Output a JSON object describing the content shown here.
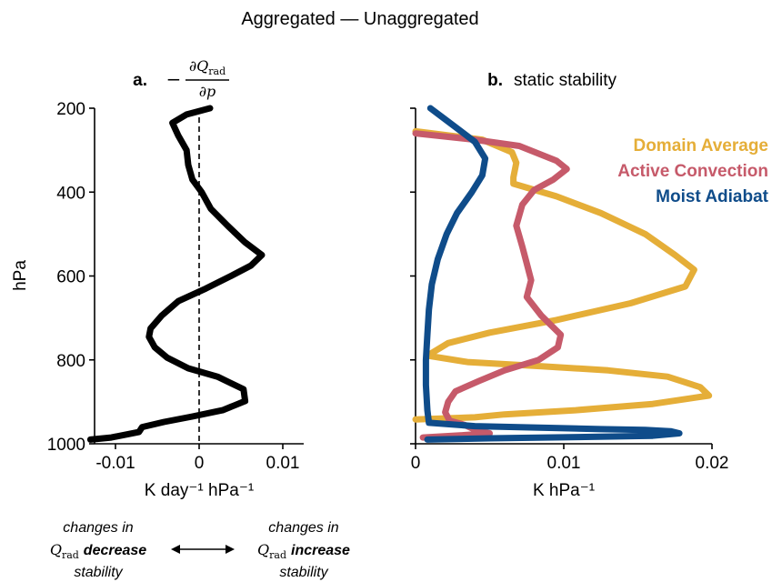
{
  "figure": {
    "suptitle": "Aggregated — Unaggregated",
    "bottom_annotation": {
      "left_line1": "changes in",
      "left_sym": "Q",
      "left_sub": "rad",
      "left_bold": "decrease",
      "left_line3": "stability",
      "right_line1": "changes in",
      "right_sym": "Q",
      "right_sub": "rad",
      "right_bold": "increase",
      "right_line3": "stability"
    }
  },
  "chart_data": [
    {
      "type": "line",
      "panel_label": "a.",
      "title_minus": "−",
      "title_num": "∂Q",
      "title_num_sub": "rad",
      "title_den": "∂p",
      "ylabel": "hPa",
      "xlabel": "K day⁻¹ hPa⁻¹",
      "xlim": [
        -0.0125,
        0.0125
      ],
      "ylim": [
        1000,
        200
      ],
      "y_inverted": true,
      "xticks": [
        -0.01,
        0,
        0.01
      ],
      "xtick_labels": [
        "-0.01",
        "0",
        "0.01"
      ],
      "yticks": [
        200,
        400,
        600,
        800,
        1000
      ],
      "ytick_labels": [
        "200",
        "400",
        "600",
        "800",
        "1000"
      ],
      "zero_line": "dashed",
      "series": [
        {
          "color": "#000000",
          "points": [
            [
              0.0013,
              200
            ],
            [
              -0.0015,
              215
            ],
            [
              -0.0032,
              235
            ],
            [
              -0.0025,
              265
            ],
            [
              -0.0015,
              300
            ],
            [
              -0.0013,
              335
            ],
            [
              -0.0008,
              370
            ],
            [
              0.0003,
              400
            ],
            [
              0.0014,
              440
            ],
            [
              0.0034,
              480
            ],
            [
              0.0055,
              520
            ],
            [
              0.0075,
              550
            ],
            [
              0.0062,
              575
            ],
            [
              0.0038,
              600
            ],
            [
              0.0008,
              630
            ],
            [
              -0.0025,
              660
            ],
            [
              -0.0045,
              695
            ],
            [
              -0.0058,
              725
            ],
            [
              -0.006,
              745
            ],
            [
              -0.0053,
              770
            ],
            [
              -0.0038,
              795
            ],
            [
              -0.0013,
              820
            ],
            [
              0.0022,
              840
            ],
            [
              0.0053,
              870
            ],
            [
              0.0055,
              898
            ],
            [
              0.0028,
              920
            ],
            [
              -0.0008,
              935
            ],
            [
              -0.0042,
              948
            ],
            [
              -0.0068,
              960
            ],
            [
              -0.0072,
              972
            ],
            [
              -0.0105,
              985
            ],
            [
              -0.013,
              990
            ]
          ]
        }
      ]
    },
    {
      "type": "line",
      "panel_label": "b.",
      "title": "static stability",
      "xlabel": "K hPa⁻¹",
      "xlim": [
        0,
        0.02
      ],
      "ylim": [
        1000,
        200
      ],
      "y_inverted": true,
      "xticks": [
        0,
        0.01,
        0.02
      ],
      "xtick_labels": [
        "0",
        "0.01",
        "0.02"
      ],
      "yticks": [
        200,
        400,
        600,
        800,
        1000
      ],
      "legend": "top-right",
      "series": [
        {
          "name": "Domain Average",
          "color": "#E5AE38",
          "points": [
            [
              0.0,
              255
            ],
            [
              0.0045,
              275
            ],
            [
              0.0065,
              305
            ],
            [
              0.0068,
              330
            ],
            [
              0.0066,
              365
            ],
            [
              0.0066,
              380
            ],
            [
              0.0095,
              410
            ],
            [
              0.0125,
              450
            ],
            [
              0.0155,
              500
            ],
            [
              0.0175,
              550
            ],
            [
              0.0188,
              585
            ],
            [
              0.0182,
              625
            ],
            [
              0.0145,
              665
            ],
            [
              0.0095,
              705
            ],
            [
              0.005,
              735
            ],
            [
              0.0022,
              760
            ],
            [
              0.0008,
              790
            ],
            [
              0.0035,
              805
            ],
            [
              0.0085,
              815
            ],
            [
              0.013,
              825
            ],
            [
              0.017,
              840
            ],
            [
              0.0192,
              865
            ],
            [
              0.0198,
              885
            ],
            [
              0.016,
              905
            ],
            [
              0.0108,
              920
            ],
            [
              0.006,
              930
            ],
            [
              0.004,
              937
            ],
            [
              0.0,
              942
            ]
          ]
        },
        {
          "name": "Active Convection",
          "color": "#C65A6A",
          "points": [
            [
              0.0,
              260
            ],
            [
              0.004,
              275
            ],
            [
              0.007,
              290
            ],
            [
              0.0095,
              325
            ],
            [
              0.0102,
              345
            ],
            [
              0.0093,
              370
            ],
            [
              0.008,
              395
            ],
            [
              0.0072,
              430
            ],
            [
              0.0068,
              480
            ],
            [
              0.0072,
              530
            ],
            [
              0.0075,
              570
            ],
            [
              0.0078,
              610
            ],
            [
              0.0075,
              650
            ],
            [
              0.0085,
              695
            ],
            [
              0.0098,
              740
            ],
            [
              0.0096,
              770
            ],
            [
              0.0083,
              800
            ],
            [
              0.006,
              825
            ],
            [
              0.0043,
              850
            ],
            [
              0.0027,
              875
            ],
            [
              0.0022,
              900
            ],
            [
              0.002,
              925
            ],
            [
              0.0023,
              945
            ],
            [
              0.0033,
              955
            ],
            [
              0.0038,
              963
            ],
            [
              0.0042,
              970
            ],
            [
              0.005,
              975
            ],
            [
              0.003,
              980
            ],
            [
              0.0005,
              985
            ]
          ]
        },
        {
          "name": "Moist Adiabat",
          "color": "#0F4C8A",
          "points": [
            [
              0.001,
              200
            ],
            [
              0.0025,
              240
            ],
            [
              0.004,
              280
            ],
            [
              0.0047,
              320
            ],
            [
              0.0045,
              360
            ],
            [
              0.0038,
              400
            ],
            [
              0.0028,
              450
            ],
            [
              0.0021,
              500
            ],
            [
              0.0015,
              560
            ],
            [
              0.0011,
              620
            ],
            [
              0.0009,
              680
            ],
            [
              0.0008,
              740
            ],
            [
              0.0007,
              800
            ],
            [
              0.0007,
              860
            ],
            [
              0.0008,
              920
            ],
            [
              0.0009,
              950
            ],
            [
              0.004,
              958
            ],
            [
              0.009,
              962
            ],
            [
              0.0125,
              965
            ],
            [
              0.0155,
              967
            ],
            [
              0.0172,
              970
            ],
            [
              0.0178,
              975
            ],
            [
              0.016,
              981
            ],
            [
              0.011,
              984
            ],
            [
              0.005,
              987
            ],
            [
              0.0008,
              990
            ]
          ]
        }
      ]
    }
  ]
}
